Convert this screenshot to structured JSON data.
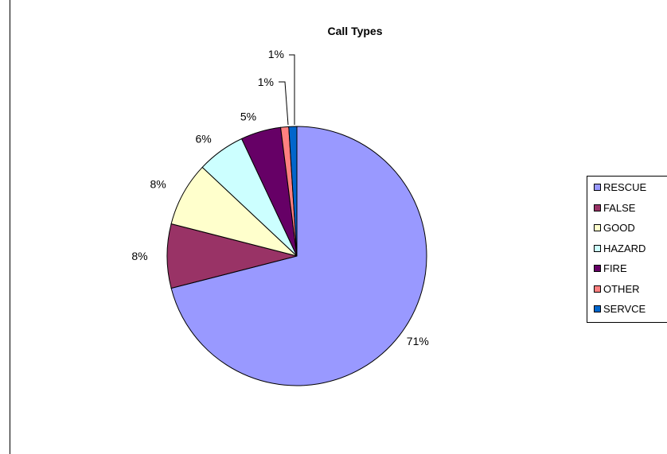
{
  "chart_data": {
    "type": "pie",
    "title": "Call Types",
    "slices": [
      {
        "label": "RESCUE",
        "value": 71,
        "display": "71%",
        "color": "#9999ff"
      },
      {
        "label": "FALSE",
        "value": 8,
        "display": "8%",
        "color": "#993366"
      },
      {
        "label": "GOOD",
        "value": 8,
        "display": "8%",
        "color": "#ffffcc"
      },
      {
        "label": "HAZARD",
        "value": 6,
        "display": "6%",
        "color": "#ccffff"
      },
      {
        "label": "FIRE",
        "value": 5,
        "display": "5%",
        "color": "#660066"
      },
      {
        "label": "OTHER",
        "value": 1,
        "display": "1%",
        "color": "#ff8080"
      },
      {
        "label": "SERVCE",
        "value": 1,
        "display": "1%",
        "color": "#0066cc"
      }
    ],
    "legend_position": "right"
  }
}
